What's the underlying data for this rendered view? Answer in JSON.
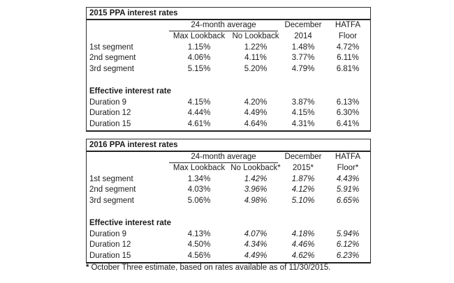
{
  "page": {
    "background": "#ffffff",
    "text_color": "#1c1c1c",
    "border_color": "#2e2e2e"
  },
  "tables": [
    {
      "title": "2015 PPA interest rates",
      "group_header": "24-month average",
      "headers": {
        "col1_bottom": "Max Lookback",
        "col2_bottom": "No Lookback",
        "col3_top": "December",
        "col3_bottom": "2014",
        "col4_top": "HATFA",
        "col4_bottom": "Floor"
      },
      "segment_rows": [
        {
          "label": "1st segment",
          "v1": "1.15%",
          "v2": "1.22%",
          "v3": "1.48%",
          "v4": "4.72%"
        },
        {
          "label": "2nd segment",
          "v1": "4.06%",
          "v2": "4.11%",
          "v3": "3.77%",
          "v4": "6.11%"
        },
        {
          "label": "3rd segment",
          "v1": "5.15%",
          "v2": "5.20%",
          "v3": "4.79%",
          "v4": "6.81%"
        }
      ],
      "section_label": "Effective interest rate",
      "duration_rows": [
        {
          "label": "Duration 9",
          "v1": "4.15%",
          "v2": "4.20%",
          "v3": "3.87%",
          "v4": "6.13%"
        },
        {
          "label": "Duration 12",
          "v1": "4.44%",
          "v2": "4.49%",
          "v3": "4.15%",
          "v4": "6.30%"
        },
        {
          "label": "Duration 15",
          "v1": "4.61%",
          "v2": "4.64%",
          "v3": "4.31%",
          "v4": "6.41%"
        }
      ]
    },
    {
      "title": "2016 PPA interest rates",
      "group_header": "24-month average",
      "headers": {
        "col1_bottom": "Max Lookback",
        "col2_bottom": "No Lookback*",
        "col3_top": "December",
        "col3_bottom": "2015*",
        "col4_top": "HATFA",
        "col4_bottom": "Floor*"
      },
      "segment_rows": [
        {
          "label": "1st segment",
          "v1": "1.34%",
          "v2": "1.42%",
          "v3": "1.87%",
          "v4": "4.43%"
        },
        {
          "label": "2nd segment",
          "v1": "4.03%",
          "v2": "3.96%",
          "v3": "4.12%",
          "v4": "5.91%"
        },
        {
          "label": "3rd segment",
          "v1": "5.06%",
          "v2": "4.98%",
          "v3": "5.10%",
          "v4": "6.65%"
        }
      ],
      "section_label": "Effective interest rate",
      "duration_rows": [
        {
          "label": "Duration 9",
          "v1": "4.13%",
          "v2": "4.07%",
          "v3": "4.18%",
          "v4": "5.94%"
        },
        {
          "label": "Duration 12",
          "v1": "4.50%",
          "v2": "4.34%",
          "v3": "4.46%",
          "v4": "6.12%"
        },
        {
          "label": "Duration 15",
          "v1": "4.56%",
          "v2": "4.49%",
          "v3": "4.62%",
          "v4": "6.23%"
        }
      ]
    }
  ],
  "footnote": {
    "marker": "*",
    "text": "October Three estimate, based on rates available as of 11/30/2015."
  }
}
